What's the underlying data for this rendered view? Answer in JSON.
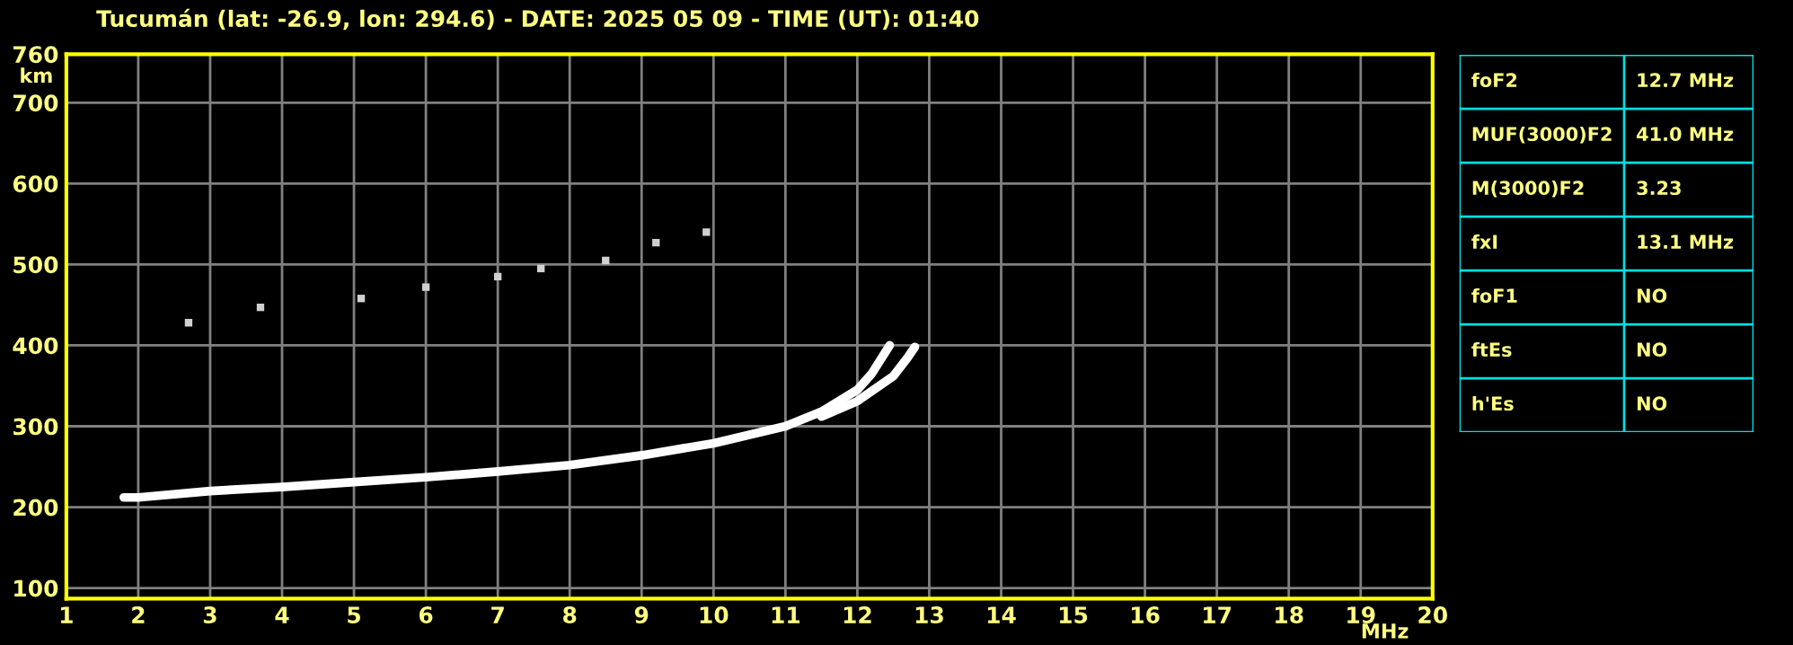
{
  "chart_data": [
    {
      "type": "line",
      "title": "Tucumán (lat: -26.9, lon: 294.6) - DATE: 2025 05 09 - TIME (UT): 01:40",
      "xlabel": "MHz",
      "ylabel": "km",
      "xlim": [
        1,
        20
      ],
      "ylim": [
        87,
        760
      ],
      "xticks": [
        1,
        2,
        3,
        4,
        5,
        6,
        7,
        8,
        9,
        10,
        11,
        12,
        13,
        14,
        15,
        16,
        17,
        18,
        19,
        20
      ],
      "yticks": [
        100,
        200,
        300,
        400,
        500,
        600,
        700,
        760
      ],
      "grid": true,
      "series": [
        {
          "type": "line",
          "color": "#ffffff",
          "x": [
            1.8,
            2,
            3,
            4,
            5,
            6,
            7,
            8,
            9,
            10,
            11,
            11.5,
            12,
            12.2,
            12.45
          ],
          "values": [
            212,
            212,
            220,
            225,
            231,
            237,
            244,
            252,
            264,
            279,
            300,
            318,
            345,
            365,
            400
          ]
        },
        {
          "type": "line",
          "color": "#ffffff",
          "x": [
            11.5,
            12,
            12.5,
            12.7,
            12.8
          ],
          "values": [
            312,
            331,
            362,
            385,
            398
          ]
        },
        {
          "type": "scatter",
          "color": "#d0d0d0",
          "marker": "square",
          "x": [
            2.7,
            3.7,
            5.1,
            6,
            7,
            7.6,
            8.5,
            9.2,
            9.9
          ],
          "values": [
            428,
            447,
            458,
            472,
            485,
            495,
            505,
            527,
            540
          ]
        }
      ]
    },
    {
      "type": "other",
      "annotations": [
        "foF2",
        "12.7 MHz",
        "MUF(3000)F2",
        "41.0 MHz",
        "M(3000)F2",
        "3.23",
        "fxI",
        "13.1 MHz",
        "foF1",
        "NO",
        "ftEs",
        "NO",
        "h'Es",
        "NO"
      ]
    }
  ]
}
